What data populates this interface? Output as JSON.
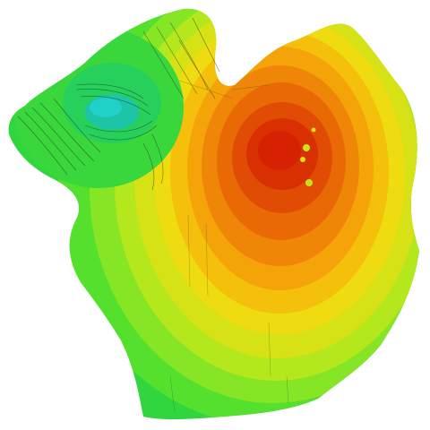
{
  "background": "#ffffff",
  "colormap": {
    "name": "green-yellow-orange-red",
    "stops": [
      "#19c29a",
      "#22d53f",
      "#5ee62a",
      "#9fe81c",
      "#d2e41a",
      "#f2cf10",
      "#f3a106",
      "#ee7a06",
      "#e24f03",
      "#d92a02"
    ]
  },
  "wireframe_color": "#1a1a1a",
  "description_visible_text": []
}
